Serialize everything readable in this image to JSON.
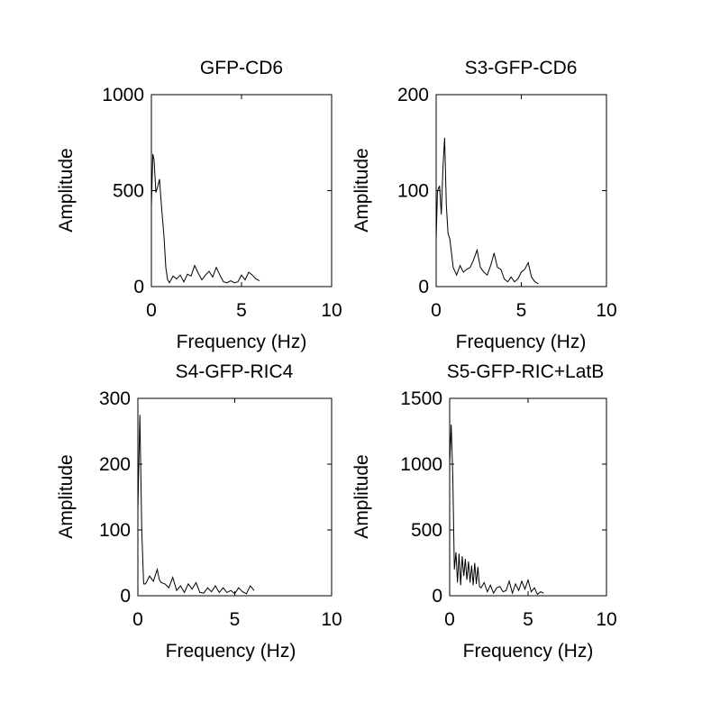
{
  "chart_data": [
    {
      "type": "line",
      "title": "GFP-CD6",
      "xlabel": "Frequency (Hz)",
      "ylabel": "Amplitude",
      "xlim": [
        0,
        10
      ],
      "ylim": [
        0,
        1000
      ],
      "xticks": [
        "0",
        "5",
        "10"
      ],
      "yticks": [
        "0",
        "500",
        "1000"
      ],
      "grid": false,
      "series": [
        {
          "x": [
            0,
            0.08,
            0.15,
            0.25,
            0.35,
            0.45,
            0.55,
            0.7,
            0.8,
            0.9,
            1.0,
            1.2,
            1.4,
            1.6,
            1.8,
            2.0,
            2.2,
            2.4,
            2.6,
            2.8,
            3.0,
            3.2,
            3.4,
            3.6,
            3.8,
            4.0,
            4.2,
            4.4,
            4.6,
            4.8,
            5.0,
            5.2,
            5.4,
            5.6,
            5.8,
            6.0
          ],
          "y": [
            420,
            690,
            660,
            490,
            520,
            560,
            430,
            260,
            100,
            35,
            20,
            55,
            40,
            60,
            25,
            65,
            55,
            110,
            70,
            35,
            60,
            80,
            50,
            100,
            60,
            25,
            20,
            30,
            20,
            25,
            60,
            35,
            75,
            60,
            40,
            30
          ]
        }
      ]
    },
    {
      "type": "line",
      "title": "S3-GFP-CD6",
      "xlabel": "Frequency (Hz)",
      "ylabel": "Amplitude",
      "xlim": [
        0,
        10
      ],
      "ylim": [
        0,
        200
      ],
      "xticks": [
        "0",
        "5",
        "10"
      ],
      "yticks": [
        "0",
        "100",
        "200"
      ],
      "grid": false,
      "series": [
        {
          "x": [
            0,
            0.08,
            0.2,
            0.3,
            0.4,
            0.5,
            0.6,
            0.7,
            0.8,
            1.0,
            1.2,
            1.4,
            1.6,
            1.8,
            2.0,
            2.2,
            2.4,
            2.6,
            2.8,
            3.0,
            3.2,
            3.4,
            3.6,
            3.8,
            4.0,
            4.2,
            4.4,
            4.6,
            4.8,
            5.0,
            5.2,
            5.4,
            5.6,
            5.8,
            6.0
          ],
          "y": [
            50,
            100,
            105,
            75,
            125,
            155,
            85,
            55,
            50,
            20,
            12,
            22,
            15,
            18,
            20,
            28,
            38,
            20,
            15,
            12,
            22,
            35,
            20,
            18,
            8,
            5,
            10,
            5,
            8,
            15,
            18,
            25,
            10,
            5,
            3
          ]
        }
      ]
    },
    {
      "type": "line",
      "title": "S4-GFP-RIC4",
      "xlabel": "Frequency (Hz)",
      "ylabel": "Amplitude",
      "xlim": [
        0,
        10
      ],
      "ylim": [
        0,
        300
      ],
      "xticks": [
        "0",
        "5",
        "10"
      ],
      "yticks": [
        "0",
        "100",
        "200",
        "300"
      ],
      "grid": false,
      "series": [
        {
          "x": [
            0,
            0.1,
            0.2,
            0.3,
            0.4,
            0.6,
            0.8,
            1.0,
            1.1,
            1.2,
            1.4,
            1.6,
            1.8,
            2.0,
            2.2,
            2.4,
            2.6,
            2.8,
            3.0,
            3.2,
            3.4,
            3.6,
            3.8,
            4.0,
            4.2,
            4.4,
            4.6,
            4.8,
            5.0,
            5.2,
            5.4,
            5.6,
            5.8,
            6.0
          ],
          "y": [
            130,
            275,
            100,
            18,
            18,
            30,
            22,
            40,
            25,
            20,
            18,
            12,
            28,
            8,
            15,
            5,
            18,
            10,
            20,
            5,
            4,
            12,
            6,
            15,
            5,
            12,
            5,
            8,
            3,
            12,
            6,
            3,
            15,
            8
          ]
        }
      ]
    },
    {
      "type": "line",
      "title": "S5-GFP-RIC+LatB",
      "xlabel": "Frequency (Hz)",
      "ylabel": "Amplitude",
      "xlim": [
        0,
        10
      ],
      "ylim": [
        0,
        1500
      ],
      "xticks": [
        "0",
        "5",
        "10"
      ],
      "yticks": [
        "0",
        "500",
        "1000",
        "1500"
      ],
      "grid": false,
      "series": [
        {
          "x": [
            0,
            0.1,
            0.2,
            0.3,
            0.4,
            0.5,
            0.6,
            0.7,
            0.8,
            0.9,
            1.0,
            1.1,
            1.2,
            1.3,
            1.4,
            1.5,
            1.6,
            1.7,
            1.8,
            1.9,
            2.0,
            2.2,
            2.4,
            2.6,
            2.8,
            3.0,
            3.2,
            3.4,
            3.6,
            3.8,
            4.0,
            4.2,
            4.4,
            4.6,
            4.8,
            5.0,
            5.2,
            5.4,
            5.6,
            5.8,
            6.0
          ],
          "y": [
            1000,
            1300,
            900,
            200,
            330,
            100,
            320,
            80,
            300,
            150,
            280,
            120,
            260,
            100,
            230,
            80,
            250,
            90,
            220,
            70,
            60,
            100,
            30,
            80,
            20,
            60,
            70,
            30,
            40,
            110,
            20,
            90,
            40,
            110,
            50,
            120,
            30,
            60,
            10,
            30,
            20
          ]
        }
      ]
    }
  ]
}
